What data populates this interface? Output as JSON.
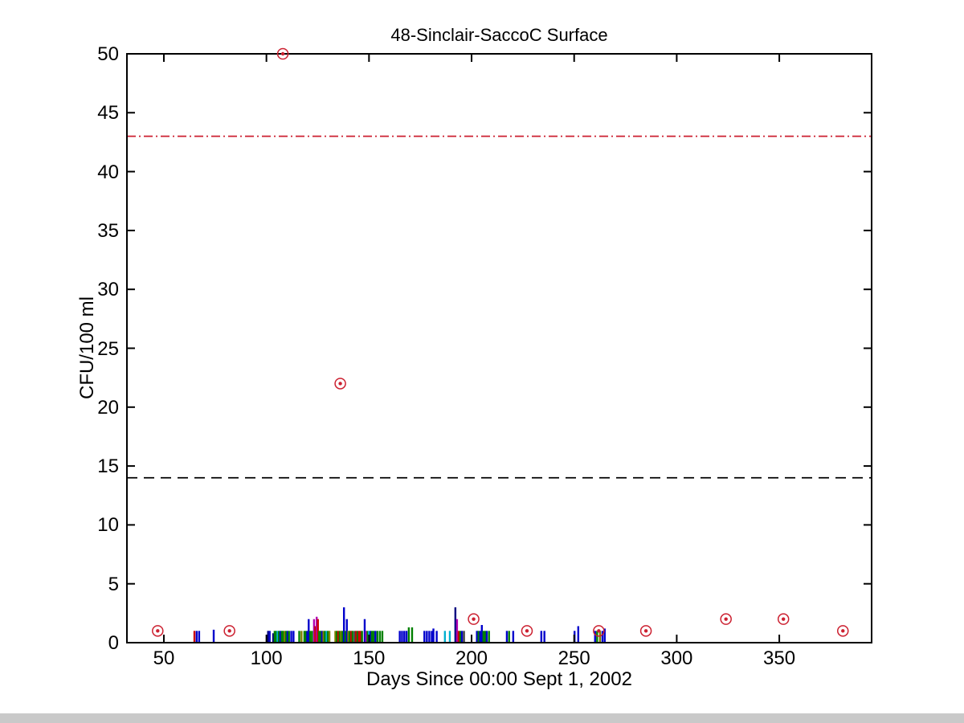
{
  "figure": {
    "title": "48-Sinclair-SaccoC Surface",
    "xlabel": "Days Since 00:00 Sept 1, 2002",
    "ylabel": "CFU/100 ml"
  },
  "chart_data": {
    "type": "scatter",
    "title": "48-Sinclair-SaccoC Surface",
    "xlabel": "Days Since 00:00 Sept 1, 2002",
    "ylabel": "CFU/100 ml",
    "xlim": [
      32,
      395
    ],
    "ylim": [
      0,
      50
    ],
    "x_ticks": [
      50,
      100,
      150,
      200,
      250,
      300,
      350
    ],
    "y_ticks": [
      0,
      5,
      10,
      15,
      20,
      25,
      30,
      35,
      40,
      45,
      50
    ],
    "grid": false,
    "legend": "none",
    "axis_color": "#000000",
    "ref_lines": [
      {
        "name": "upper-threshold-line",
        "y": 43,
        "style": "dash-dot",
        "color": "#cc2030"
      },
      {
        "name": "lower-threshold-line",
        "y": 14,
        "style": "dashed",
        "color": "#000000"
      }
    ],
    "series": [
      {
        "name": "circled-sample-markers",
        "type": "markers",
        "marker": "circled-dot",
        "color": "#cc2030",
        "points": [
          [
            47,
            1
          ],
          [
            82,
            1
          ],
          [
            108,
            50
          ],
          [
            136,
            22
          ],
          [
            201,
            2
          ],
          [
            227,
            1
          ],
          [
            262,
            1
          ],
          [
            285,
            1
          ],
          [
            324,
            2
          ],
          [
            352,
            2
          ],
          [
            381,
            1
          ]
        ]
      },
      {
        "name": "stem-samples",
        "type": "stems",
        "palette": [
          "#0000cc",
          "#008000",
          "#cc0000",
          "#00afcf",
          "#b000b0",
          "#808000",
          "#000080",
          "#404040"
        ],
        "points": [
          [
            64.9,
            1,
            2
          ],
          [
            66,
            1,
            0
          ],
          [
            67.2,
            1,
            0
          ],
          [
            74.3,
            1.1,
            0
          ],
          [
            100.8,
            1,
            6
          ],
          [
            101.6,
            1,
            0
          ],
          [
            103.3,
            0.8,
            6
          ],
          [
            104,
            1,
            1
          ],
          [
            104.7,
            1,
            1
          ],
          [
            105.4,
            1,
            3
          ],
          [
            106.1,
            1,
            1
          ],
          [
            106.8,
            1,
            0
          ],
          [
            107.5,
            1,
            1
          ],
          [
            108.2,
            1,
            1
          ],
          [
            108.9,
            1,
            5
          ],
          [
            109.6,
            1,
            1
          ],
          [
            110.3,
            1,
            0
          ],
          [
            111,
            1,
            1
          ],
          [
            112.1,
            1,
            0
          ],
          [
            113.2,
            1,
            0
          ],
          [
            116,
            1,
            1
          ],
          [
            117.1,
            1,
            5
          ],
          [
            118.5,
            1,
            1
          ],
          [
            119.2,
            1,
            1
          ],
          [
            119.9,
            1,
            0
          ],
          [
            120.6,
            2,
            0
          ],
          [
            121.3,
            1,
            1
          ],
          [
            122.2,
            1,
            1
          ],
          [
            123.2,
            2,
            4
          ],
          [
            123.8,
            1.4,
            2
          ],
          [
            124.5,
            2.2,
            4
          ],
          [
            125.1,
            2,
            2
          ],
          [
            125.7,
            1,
            1
          ],
          [
            126.4,
            1,
            1
          ],
          [
            127.1,
            1,
            0
          ],
          [
            127.8,
            1,
            5
          ],
          [
            128.5,
            1,
            1
          ],
          [
            129.3,
            1,
            3
          ],
          [
            130,
            1,
            1
          ],
          [
            130.7,
            1,
            5
          ],
          [
            133.6,
            1,
            5
          ],
          [
            134.3,
            1,
            1
          ],
          [
            135,
            1,
            2
          ],
          [
            135.7,
            1,
            1
          ],
          [
            136.4,
            1,
            5
          ],
          [
            137.1,
            1,
            1
          ],
          [
            137.8,
            3,
            0
          ],
          [
            138.5,
            1,
            1
          ],
          [
            139.2,
            2,
            0
          ],
          [
            139.9,
            1,
            5
          ],
          [
            140.6,
            1,
            1
          ],
          [
            141.3,
            1,
            2
          ],
          [
            142,
            1,
            1
          ],
          [
            143,
            1,
            7
          ],
          [
            143.7,
            1,
            2
          ],
          [
            144.4,
            1,
            1
          ],
          [
            145.1,
            1,
            2
          ],
          [
            145.8,
            1,
            2
          ],
          [
            146.6,
            1,
            1
          ],
          [
            147.9,
            2,
            0
          ],
          [
            148.6,
            1,
            4
          ],
          [
            149.3,
            1,
            1
          ],
          [
            150,
            1,
            3
          ],
          [
            150.7,
            1,
            0
          ],
          [
            151.4,
            1,
            1
          ],
          [
            152.2,
            1,
            1
          ],
          [
            153.1,
            1,
            0
          ],
          [
            154.1,
            1,
            1
          ],
          [
            155.3,
            1,
            1
          ],
          [
            156.5,
            1,
            1
          ],
          [
            165,
            1,
            0
          ],
          [
            166.1,
            1,
            0
          ],
          [
            167.2,
            1,
            0
          ],
          [
            168.3,
            1,
            0
          ],
          [
            169.4,
            1.3,
            1
          ],
          [
            171,
            1.3,
            1
          ],
          [
            177,
            1,
            0
          ],
          [
            178.2,
            1,
            0
          ],
          [
            179.4,
            1,
            0
          ],
          [
            180.6,
            1,
            0
          ],
          [
            181.4,
            1.2,
            0
          ],
          [
            183,
            1,
            0
          ],
          [
            187,
            1,
            3
          ],
          [
            189.4,
            1,
            3
          ],
          [
            192.1,
            3,
            6
          ],
          [
            192.9,
            2,
            4
          ],
          [
            193.7,
            1,
            2
          ],
          [
            194.5,
            1,
            1
          ],
          [
            195.3,
            1,
            0
          ],
          [
            196.3,
            1,
            7
          ],
          [
            202.6,
            1,
            0
          ],
          [
            203.4,
            1,
            1
          ],
          [
            204.2,
            1,
            0
          ],
          [
            205,
            1.5,
            0
          ],
          [
            205.8,
            1,
            1
          ],
          [
            206.6,
            1,
            1
          ],
          [
            207.4,
            1,
            0
          ],
          [
            208.5,
            1,
            1
          ],
          [
            217.2,
            1,
            0
          ],
          [
            218.3,
            1,
            1
          ],
          [
            220.3,
            1,
            0
          ],
          [
            234,
            1,
            0
          ],
          [
            235.5,
            1,
            0
          ],
          [
            250.2,
            1,
            0
          ],
          [
            252,
            1.4,
            0
          ],
          [
            260.2,
            1,
            0
          ],
          [
            261.2,
            1,
            1
          ],
          [
            262.6,
            1,
            5
          ],
          [
            263.8,
            1,
            0
          ],
          [
            264.9,
            1.2,
            0
          ]
        ]
      }
    ]
  }
}
